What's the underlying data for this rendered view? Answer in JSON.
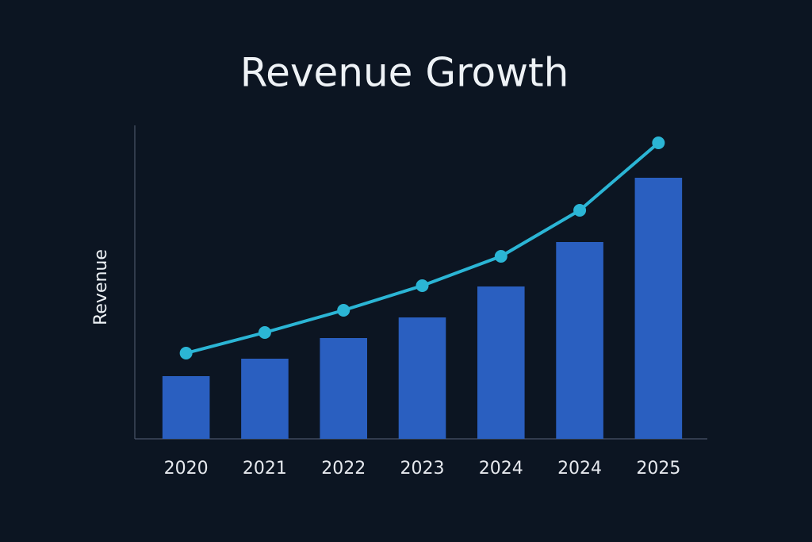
{
  "chart_data": {
    "type": "combo",
    "title": "Revenue Growth",
    "y_label": "Revenue",
    "categories": [
      "2020",
      "2021",
      "2022",
      "2023",
      "2024",
      "2024",
      "2025"
    ],
    "series": [
      {
        "type": "bar",
        "color": "#2a5fc0",
        "values": [
          79,
          101,
          127,
          153,
          192,
          248,
          329
        ]
      },
      {
        "type": "line",
        "color": "#2bb5d5",
        "values": [
          108,
          134,
          162,
          193,
          230,
          288,
          373
        ]
      }
    ],
    "ylim": [
      0,
      400
    ]
  }
}
